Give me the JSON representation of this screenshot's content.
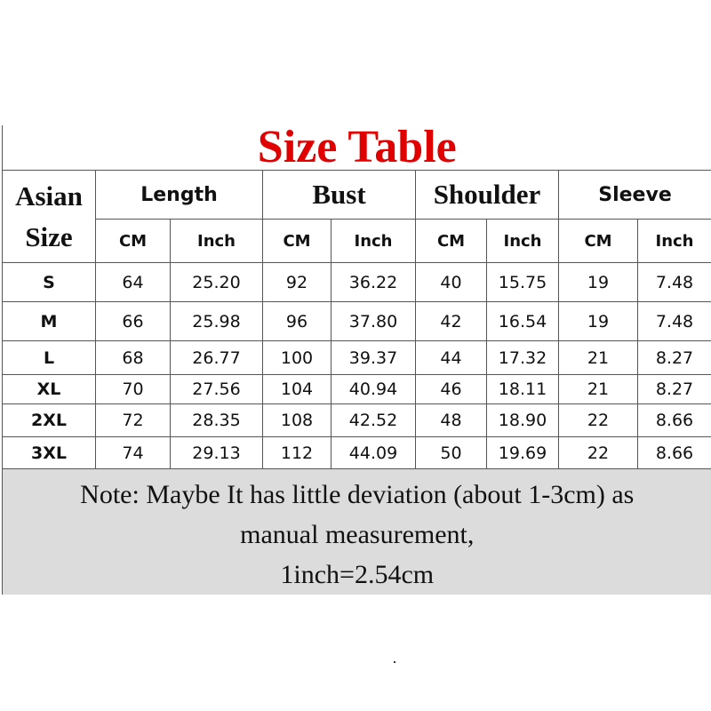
{
  "title": "Size Table",
  "title_color": "#e00000",
  "header": {
    "size_line1": "Asian",
    "size_line2": "Size",
    "groups": [
      "Length",
      "Bust",
      "Shoulder",
      "Sleeve"
    ],
    "units": [
      "CM",
      "Inch",
      "CM",
      "Inch",
      "CM",
      "Inch",
      "CM",
      "Inch"
    ]
  },
  "rows": [
    {
      "size": "S",
      "values": [
        "64",
        "25.20",
        "92",
        "36.22",
        "40",
        "15.75",
        "19",
        "7.48"
      ]
    },
    {
      "size": "M",
      "values": [
        "66",
        "25.98",
        "96",
        "37.80",
        "42",
        "16.54",
        "19",
        "7.48"
      ]
    },
    {
      "size": "L",
      "values": [
        "68",
        "26.77",
        "100",
        "39.37",
        "44",
        "17.32",
        "21",
        "8.27"
      ]
    },
    {
      "size": "XL",
      "values": [
        "70",
        "27.56",
        "104",
        "40.94",
        "46",
        "18.11",
        "21",
        "8.27"
      ]
    },
    {
      "size": "2XL",
      "values": [
        "72",
        "28.35",
        "108",
        "42.52",
        "48",
        "18.90",
        "22",
        "8.66"
      ]
    },
    {
      "size": "3XL",
      "values": [
        "74",
        "29.13",
        "112",
        "44.09",
        "50",
        "19.69",
        "22",
        "8.66"
      ]
    }
  ],
  "note": {
    "line1": "Note: Maybe It has little deviation (about 1-3cm) as",
    "line2": "manual measurement,",
    "line3": "1inch=2.54cm"
  }
}
